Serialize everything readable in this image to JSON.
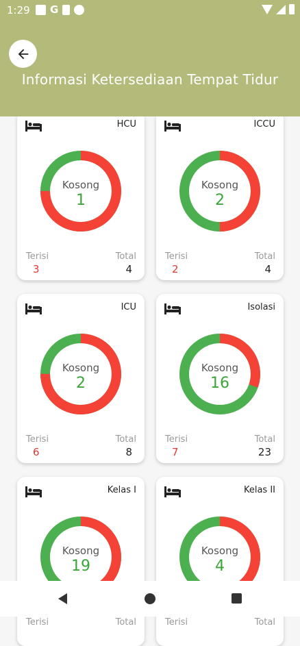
{
  "status_bar": {
    "time": "1:29",
    "icons": [
      "image-icon",
      "google-icon",
      "sd-card-icon",
      "sync-off-icon"
    ],
    "right_icons": [
      "wifi-icon",
      "signal-icon",
      "battery-icon"
    ]
  },
  "header": {
    "title": "Informasi Ketersediaan Tempat Tidur",
    "back_icon": "arrow-left-icon"
  },
  "colors": {
    "header_bg": "#b4bb7a",
    "available": "#4caf50",
    "occupied": "#f44336"
  },
  "labels": {
    "kosong": "Kosong",
    "terisi": "Terisi",
    "total": "Total"
  },
  "cards": [
    {
      "name": "HCU",
      "kosong": "1",
      "terisi": "3",
      "total": "4"
    },
    {
      "name": "ICCU",
      "kosong": "2",
      "terisi": "2",
      "total": "4"
    },
    {
      "name": "ICU",
      "kosong": "2",
      "terisi": "6",
      "total": "8"
    },
    {
      "name": "Isolasi",
      "kosong": "16",
      "terisi": "7",
      "total": "23"
    },
    {
      "name": "Kelas I",
      "kosong": "19",
      "terisi": "",
      "total": ""
    },
    {
      "name": "Kelas II",
      "kosong": "4",
      "terisi": "",
      "total": ""
    }
  ],
  "nav": {
    "back": "nav-back-icon",
    "home": "nav-home-icon",
    "recents": "nav-recents-icon"
  }
}
